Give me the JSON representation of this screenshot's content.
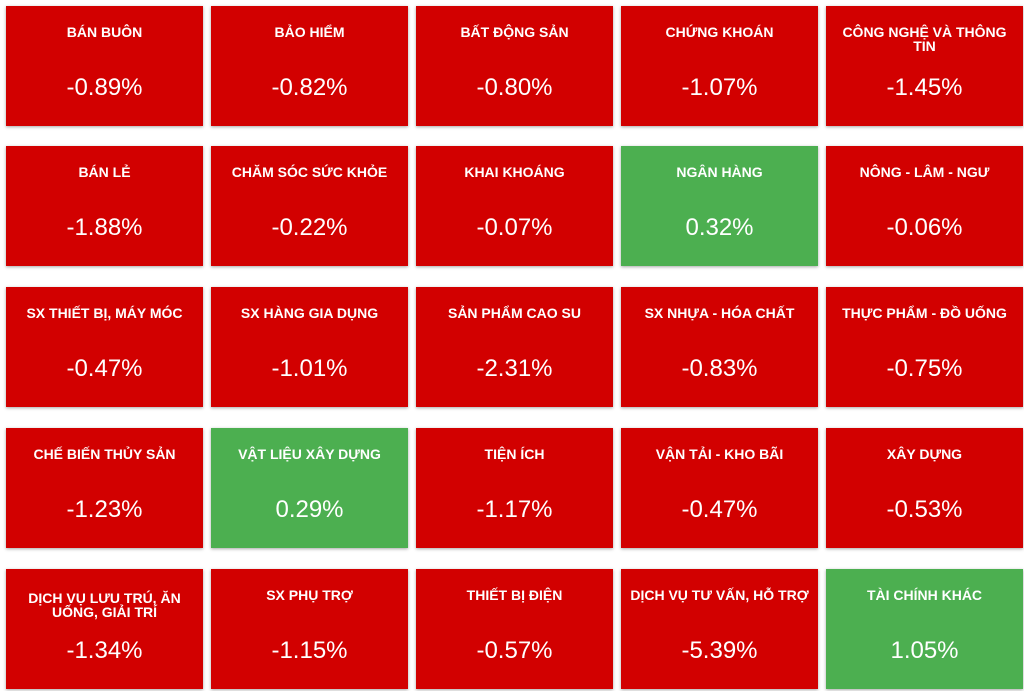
{
  "colors": {
    "down": "#d20000",
    "up": "#4caf50"
  },
  "sectors": [
    {
      "name": "BÁN BUÔN",
      "change": "-0.89%",
      "trend": "down"
    },
    {
      "name": "BẢO HIỂM",
      "change": "-0.82%",
      "trend": "down"
    },
    {
      "name": "BẤT ĐỘNG SẢN",
      "change": "-0.80%",
      "trend": "down"
    },
    {
      "name": "CHỨNG KHOÁN",
      "change": "-1.07%",
      "trend": "down"
    },
    {
      "name": "CÔNG NGHỆ VÀ THÔNG TIN",
      "change": "-1.45%",
      "trend": "down"
    },
    {
      "name": "BÁN LẺ",
      "change": "-1.88%",
      "trend": "down"
    },
    {
      "name": "CHĂM SÓC SỨC KHỎE",
      "change": "-0.22%",
      "trend": "down"
    },
    {
      "name": "KHAI KHOÁNG",
      "change": "-0.07%",
      "trend": "down"
    },
    {
      "name": "NGÂN HÀNG",
      "change": "0.32%",
      "trend": "up"
    },
    {
      "name": "NÔNG - LÂM - NGƯ",
      "change": "-0.06%",
      "trend": "down"
    },
    {
      "name": "SX THIẾT BỊ, MÁY MÓC",
      "change": "-0.47%",
      "trend": "down"
    },
    {
      "name": "SX HÀNG GIA DỤNG",
      "change": "-1.01%",
      "trend": "down"
    },
    {
      "name": "SẢN PHẨM CAO SU",
      "change": "-2.31%",
      "trend": "down"
    },
    {
      "name": "SX NHỰA - HÓA CHẤT",
      "change": "-0.83%",
      "trend": "down"
    },
    {
      "name": "THỰC PHẨM - ĐỒ UỐNG",
      "change": "-0.75%",
      "trend": "down"
    },
    {
      "name": "CHẾ BIẾN THỦY SẢN",
      "change": "-1.23%",
      "trend": "down"
    },
    {
      "name": "VẬT LIỆU XÂY DỰNG",
      "change": "0.29%",
      "trend": "up"
    },
    {
      "name": "TIỆN ÍCH",
      "change": "-1.17%",
      "trend": "down"
    },
    {
      "name": "VẬN TẢI - KHO BÃI",
      "change": "-0.47%",
      "trend": "down"
    },
    {
      "name": "XÂY DỰNG",
      "change": "-0.53%",
      "trend": "down"
    },
    {
      "name": "DỊCH VỤ LƯU TRÚ, ĂN UỐNG, GIẢI TRÍ",
      "change": "-1.34%",
      "trend": "down"
    },
    {
      "name": "SX PHỤ TRỢ",
      "change": "-1.15%",
      "trend": "down"
    },
    {
      "name": "THIẾT BỊ ĐIỆN",
      "change": "-0.57%",
      "trend": "down"
    },
    {
      "name": "DỊCH VỤ TƯ VẤN, HỖ TRỢ",
      "change": "-5.39%",
      "trend": "down"
    },
    {
      "name": "TÀI CHÍNH KHÁC",
      "change": "1.05%",
      "trend": "up"
    }
  ]
}
